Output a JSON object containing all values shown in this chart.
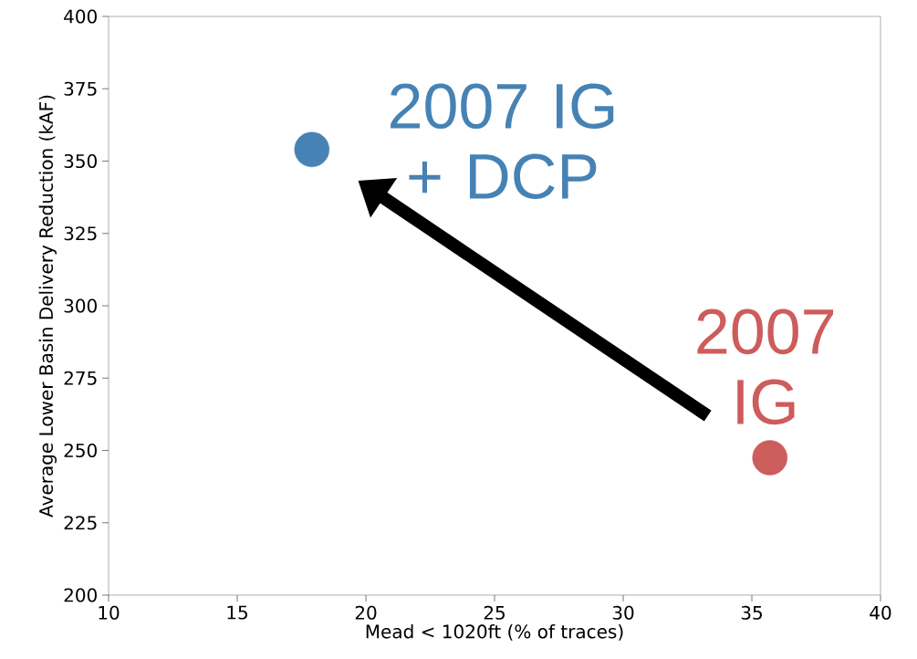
{
  "chart_data": {
    "type": "scatter",
    "xlabel": "Mead < 1020ft (% of traces)",
    "ylabel": "Average Lower Basin Delivery Reduction (kAF)",
    "xlim": [
      10,
      40
    ],
    "ylim": [
      200,
      400
    ],
    "xticks": [
      10,
      15,
      20,
      25,
      30,
      35,
      40
    ],
    "yticks": [
      200,
      225,
      250,
      275,
      300,
      325,
      350,
      375,
      400
    ],
    "marker": "circle",
    "grid": false,
    "series": [
      {
        "name": "2007 IG + DCP",
        "color": "#4682b4",
        "x": [
          17.9
        ],
        "values": [
          354
        ]
      },
      {
        "name": "2007 IG",
        "color": "#cd5c5c",
        "x": [
          35.7
        ],
        "values": [
          247.5
        ]
      }
    ]
  }
}
